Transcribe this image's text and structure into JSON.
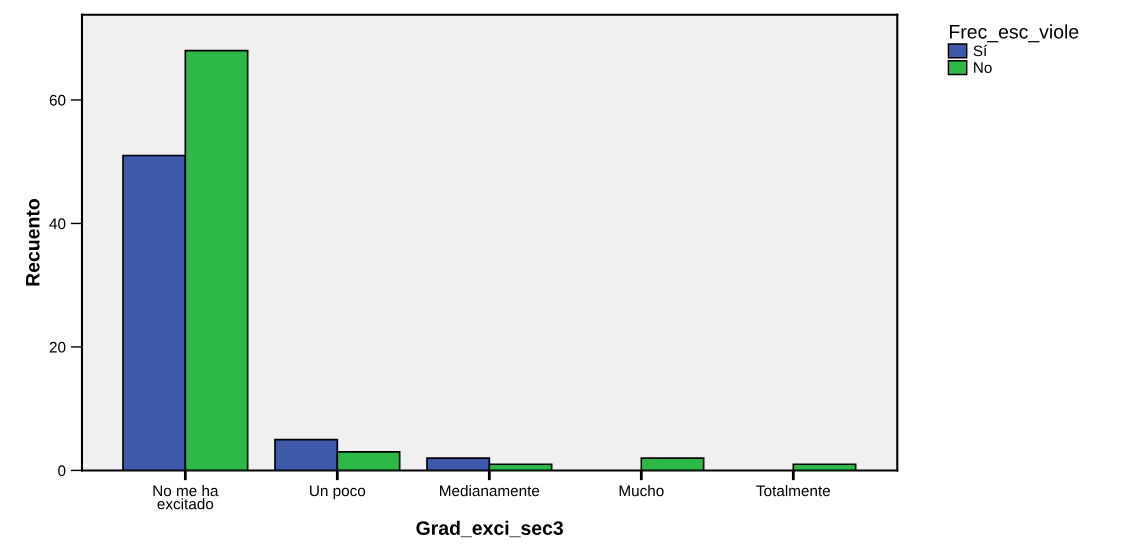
{
  "chart_data": {
    "type": "bar",
    "xlabel": "Grad_exci_sec3",
    "ylabel": "Recuento",
    "legend_title": "Frec_esc_viole",
    "categories": [
      "No me ha\nexcitado",
      "Un poco",
      "Medianamente",
      "Mucho",
      "Totalmente"
    ],
    "series": [
      {
        "name": "Sí",
        "color": "#3e58ac",
        "values": [
          51,
          5,
          2,
          null,
          null
        ]
      },
      {
        "name": "No",
        "color": "#2eb848",
        "values": [
          68,
          3,
          1,
          2,
          1
        ]
      }
    ],
    "ylim": [
      0,
      73.8
    ],
    "yticks": [
      0,
      20,
      40,
      60
    ],
    "legend": "top right",
    "grid": false
  }
}
